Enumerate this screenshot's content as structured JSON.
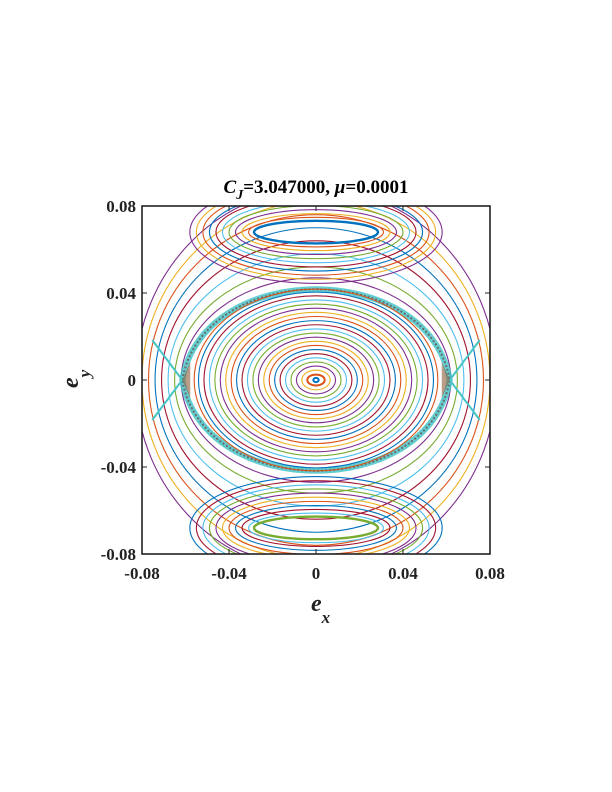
{
  "chart_data": {
    "type": "scatter",
    "title": {
      "c_symbol": "C",
      "c_subscript": "J",
      "c_value": "=3.047000, ",
      "mu_symbol": "μ",
      "mu_value": "=0.0001"
    },
    "xlabel": {
      "symbol": "e",
      "subscript": "x"
    },
    "ylabel": {
      "symbol": "e",
      "subscript": "y"
    },
    "xlim": [
      -0.08,
      0.08
    ],
    "ylim": [
      -0.08,
      0.08
    ],
    "xticks": [
      {
        "value": -0.08,
        "label": "-0.08"
      },
      {
        "value": -0.04,
        "label": "-0.04"
      },
      {
        "value": 0,
        "label": "0"
      },
      {
        "value": 0.04,
        "label": "0.04"
      },
      {
        "value": 0.08,
        "label": "0.08"
      }
    ],
    "yticks": [
      {
        "value": 0.08,
        "label": "0.08"
      },
      {
        "value": 0.04,
        "label": "0.04"
      },
      {
        "value": 0,
        "label": "0"
      },
      {
        "value": -0.04,
        "label": "-0.04"
      },
      {
        "value": -0.08,
        "label": "-0.08"
      }
    ],
    "grid": false,
    "palette": [
      "#0072BD",
      "#D95319",
      "#EDB120",
      "#7E2F8E",
      "#77AC30",
      "#4DBEEE",
      "#A2142F"
    ],
    "separatrix_color": "#48C4C8",
    "central_orbits": [
      {
        "cx": 0,
        "a": 0.0012,
        "b": 0.001
      },
      {
        "cx": 0,
        "a": 0.004,
        "b": 0.0025
      },
      {
        "cx": 0,
        "a": 0.0065,
        "b": 0.0045
      },
      {
        "cx": 0,
        "a": 0.009,
        "b": 0.0064
      },
      {
        "cx": 0,
        "a": 0.0115,
        "b": 0.0083
      },
      {
        "cx": 0,
        "a": 0.014,
        "b": 0.0102
      },
      {
        "cx": 0,
        "a": 0.0165,
        "b": 0.0121
      },
      {
        "cx": 0,
        "a": 0.019,
        "b": 0.014
      },
      {
        "cx": 0,
        "a": 0.0215,
        "b": 0.0159
      },
      {
        "cx": 0,
        "a": 0.024,
        "b": 0.0178
      },
      {
        "cx": 0,
        "a": 0.0265,
        "b": 0.0197
      },
      {
        "cx": 0,
        "a": 0.029,
        "b": 0.0216
      },
      {
        "cx": 0,
        "a": 0.0315,
        "b": 0.0235
      },
      {
        "cx": 0,
        "a": 0.034,
        "b": 0.0254
      },
      {
        "cx": 0,
        "a": 0.0365,
        "b": 0.0273
      },
      {
        "cx": 0,
        "a": 0.039,
        "b": 0.0292
      },
      {
        "cx": 0,
        "a": 0.0415,
        "b": 0.0311
      },
      {
        "cx": 0,
        "a": 0.044,
        "b": 0.033
      },
      {
        "cx": 0,
        "a": 0.0465,
        "b": 0.0349
      },
      {
        "cx": 0,
        "a": 0.049,
        "b": 0.0368
      },
      {
        "cx": 0,
        "a": 0.0515,
        "b": 0.0387
      },
      {
        "cx": 0,
        "a": 0.054,
        "b": 0.0404
      },
      {
        "cx": 0,
        "a": 0.056,
        "b": 0.0418
      }
    ],
    "resonance_orbits": [
      {
        "cy": 0.068,
        "a": 0.0285,
        "b": 0.0052
      },
      {
        "cy": 0.068,
        "a": 0.031,
        "b": 0.0068
      },
      {
        "cy": 0.068,
        "a": 0.034,
        "b": 0.0085
      },
      {
        "cy": 0.068,
        "a": 0.037,
        "b": 0.0103
      },
      {
        "cy": 0.068,
        "a": 0.04,
        "b": 0.0122
      },
      {
        "cy": 0.068,
        "a": 0.043,
        "b": 0.0141
      },
      {
        "cy": 0.068,
        "a": 0.046,
        "b": 0.016
      },
      {
        "cy": 0.068,
        "a": 0.049,
        "b": 0.0179
      },
      {
        "cy": 0.068,
        "a": 0.052,
        "b": 0.0198
      },
      {
        "cy": 0.068,
        "a": 0.055,
        "b": 0.0217
      },
      {
        "cy": 0.068,
        "a": 0.058,
        "b": 0.0236
      },
      {
        "cy": -0.068,
        "a": 0.0285,
        "b": 0.0052
      },
      {
        "cy": -0.068,
        "a": 0.031,
        "b": 0.0068
      },
      {
        "cy": -0.068,
        "a": 0.034,
        "b": 0.0085
      },
      {
        "cy": -0.068,
        "a": 0.037,
        "b": 0.0103
      },
      {
        "cy": -0.068,
        "a": 0.04,
        "b": 0.0122
      },
      {
        "cy": -0.068,
        "a": 0.043,
        "b": 0.0141
      },
      {
        "cy": -0.068,
        "a": 0.046,
        "b": 0.016
      },
      {
        "cy": -0.068,
        "a": 0.049,
        "b": 0.0179
      },
      {
        "cy": -0.068,
        "a": 0.052,
        "b": 0.0198
      },
      {
        "cy": -0.068,
        "a": 0.055,
        "b": 0.0217
      },
      {
        "cy": -0.068,
        "a": 0.058,
        "b": 0.0236
      }
    ],
    "outer_orbits": [
      {
        "a": 0.062,
        "b": 0.047
      },
      {
        "a": 0.065,
        "b": 0.052
      },
      {
        "a": 0.068,
        "b": 0.058
      },
      {
        "a": 0.071,
        "b": 0.064
      },
      {
        "a": 0.074,
        "b": 0.07
      },
      {
        "a": 0.077,
        "b": 0.076
      },
      {
        "a": 0.08,
        "b": 0.082
      },
      {
        "a": 0.083,
        "b": 0.088
      }
    ],
    "hyperbolic_points": [
      -0.0615,
      0.0615
    ],
    "separatrix_half_height": 0.0455
  }
}
